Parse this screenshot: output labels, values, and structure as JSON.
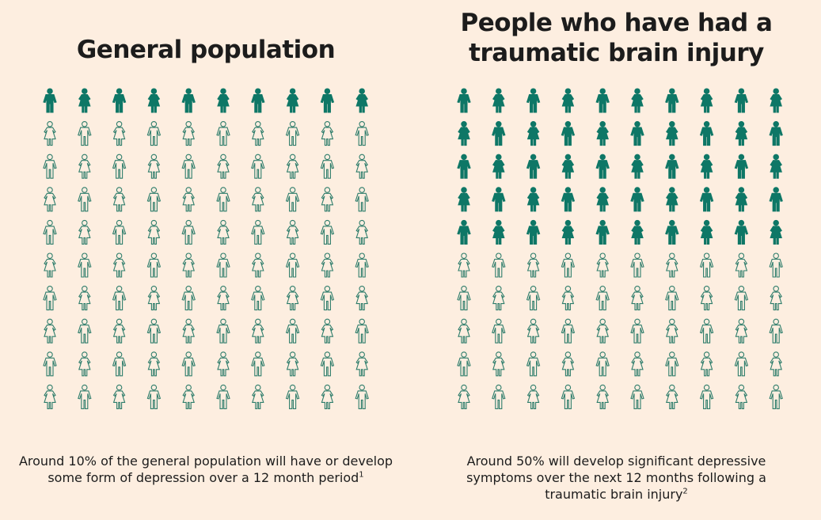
{
  "chart_data": [
    {
      "type": "pictogram",
      "title": "General population",
      "rows": 10,
      "cols": 10,
      "total": 100,
      "highlighted": 10,
      "percent": 10,
      "highlight_color": "#0e7766",
      "outline_color": "#2e7d6b",
      "caption": "Around 10% of the general population will have or develop some form of depression over a 12 month period",
      "footnote": "1"
    },
    {
      "type": "pictogram",
      "title": "People who have had a traumatic brain injury",
      "rows": 10,
      "cols": 10,
      "total": 100,
      "highlighted": 50,
      "percent": 50,
      "highlight_color": "#0e7766",
      "outline_color": "#2e7d6b",
      "caption": "Around 50% will develop significant depressive symptoms over the next 12 months following a traumatic brain injury",
      "footnote": "2"
    }
  ],
  "colors": {
    "background": "#fdeee0",
    "text": "#1c1c1c"
  }
}
